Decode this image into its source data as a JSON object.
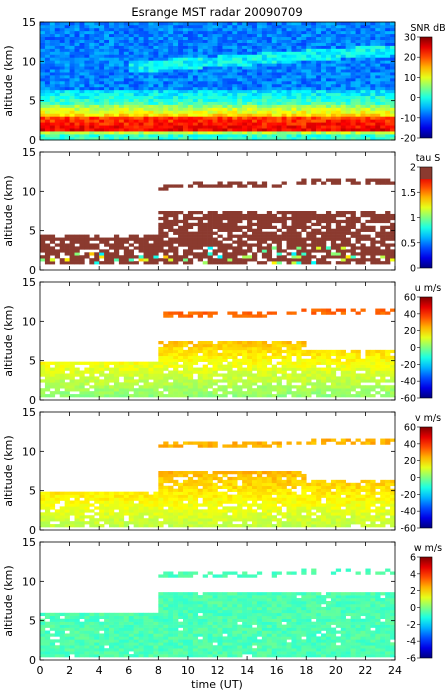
{
  "chart_data": {
    "title": "Esrange MST radar 20090709",
    "type": "heatmap",
    "xlabel": "time (UT)",
    "xlim": [
      0,
      24
    ],
    "xticks": [
      "0",
      "2",
      "4",
      "6",
      "8",
      "10",
      "12",
      "14",
      "16",
      "18",
      "20",
      "22",
      "24"
    ],
    "panels": [
      {
        "ylabel": "altitude (km)",
        "ylim": [
          0,
          15
        ],
        "yticks": [
          "0",
          "5",
          "10",
          "15"
        ],
        "colorbar": {
          "label": "SNR dB",
          "range": [
            -20,
            30
          ],
          "ticks": [
            "30",
            "20",
            "10",
            "0",
            "-10",
            "-20"
          ]
        }
      },
      {
        "ylabel": "altitude (km)",
        "ylim": [
          0,
          15
        ],
        "yticks": [
          "0",
          "5",
          "10",
          "15"
        ],
        "colorbar": {
          "label": "tau S",
          "range": [
            0,
            2
          ],
          "ticks": [
            "2",
            "1.5",
            "1",
            "0.5",
            "0"
          ]
        }
      },
      {
        "ylabel": "altitude (km)",
        "ylim": [
          0,
          15
        ],
        "yticks": [
          "0",
          "5",
          "10",
          "15"
        ],
        "colorbar": {
          "label": "u m/s",
          "range": [
            -60,
            60
          ],
          "ticks": [
            "60",
            "40",
            "20",
            "0",
            "-20",
            "-40",
            "-60"
          ]
        }
      },
      {
        "ylabel": "altitude (km)",
        "ylim": [
          0,
          15
        ],
        "yticks": [
          "0",
          "5",
          "10",
          "15"
        ],
        "colorbar": {
          "label": "v m/s",
          "range": [
            -60,
            60
          ],
          "ticks": [
            "60",
            "40",
            "20",
            "0",
            "-20",
            "-40",
            "-60"
          ]
        }
      },
      {
        "ylabel": "altitude (km)",
        "ylim": [
          0,
          15
        ],
        "yticks": [
          "0",
          "5",
          "10",
          "15"
        ],
        "colorbar": {
          "label": "w m/s",
          "range": [
            -6,
            6
          ],
          "ticks": [
            "6",
            "4",
            "2",
            "0",
            "-2",
            "-4",
            "-6"
          ]
        }
      }
    ]
  }
}
